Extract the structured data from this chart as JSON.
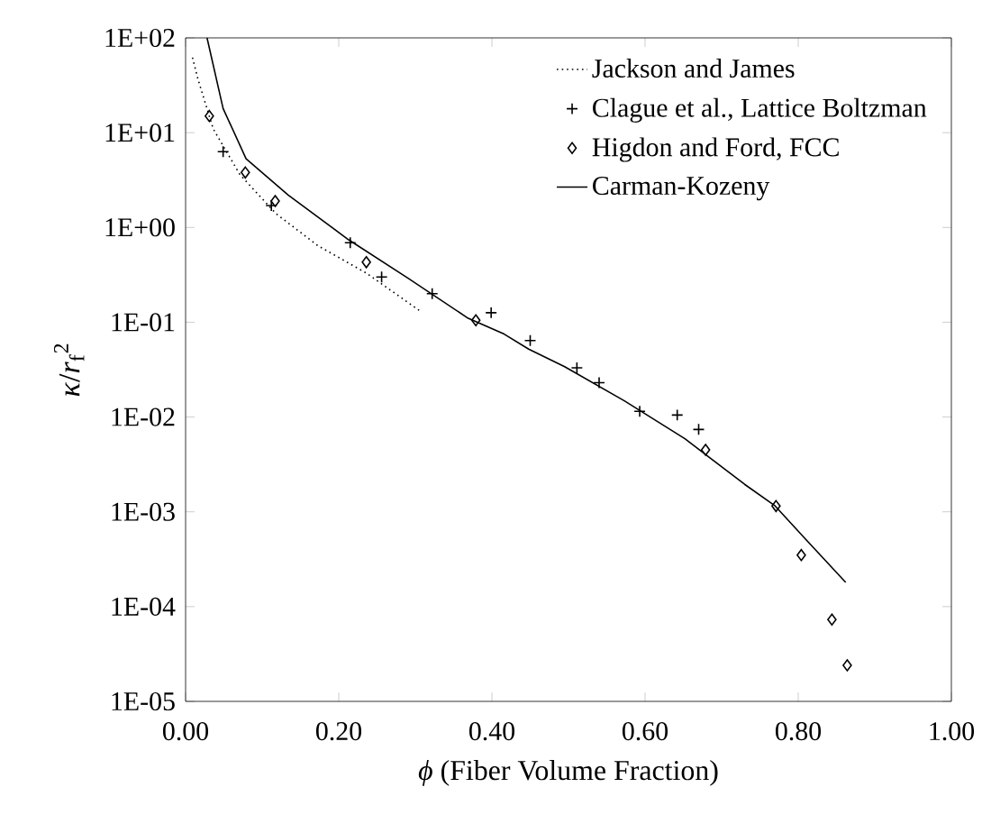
{
  "chart_data": {
    "type": "scatter",
    "xlabel": "*ϕ* (Fiber Volume Fraction)",
    "ylabel": "*κ*/*r*$_{f}$$^{2}$",
    "log": "y",
    "legend": "top right",
    "grid": false,
    "xlim": [
      0,
      1
    ],
    "xticks": [
      {
        "value": 0,
        "label": "0.00"
      },
      {
        "value": 0.2,
        "label": "0.20"
      },
      {
        "value": 0.4,
        "label": "0.40"
      },
      {
        "value": 0.6,
        "label": "0.60"
      },
      {
        "value": 0.8,
        "label": "0.80"
      },
      {
        "value": 1,
        "label": "1.00"
      }
    ],
    "ylim": [
      1e-05,
      100
    ],
    "yticks": [
      {
        "value": 1e-05,
        "label": "1E-05"
      },
      {
        "value": 0.0001,
        "label": "1E-04"
      },
      {
        "value": 0.001,
        "label": "1E-03"
      },
      {
        "value": 0.01,
        "label": "1E-02"
      },
      {
        "value": 0.1,
        "label": "1E-01"
      },
      {
        "value": 1,
        "label": "1E+00"
      },
      {
        "value": 10,
        "label": "1E+01"
      },
      {
        "value": 100,
        "label": "1E+02"
      }
    ],
    "series": [
      {
        "name": "Jackson and James",
        "type": "line",
        "line_style": "dotted",
        "marker": "none",
        "color": "#000000",
        "x": [
          0.009,
          0.016,
          0.036,
          0.071,
          0.118,
          0.173,
          0.236,
          0.307
        ],
        "values": [
          62,
          37,
          11,
          3.6,
          1.4,
          0.64,
          0.33,
          0.13
        ]
      },
      {
        "name": "Clague et al., Lattice Boltzman",
        "marker": "cross",
        "color": "#000000",
        "x": [
          0.049,
          0.112,
          0.215,
          0.256,
          0.322,
          0.399,
          0.45,
          0.511,
          0.54,
          0.593,
          0.642,
          0.67
        ],
        "values": [
          6.3,
          1.7,
          0.69,
          0.3,
          0.2,
          0.126,
          0.064,
          0.033,
          0.023,
          0.0115,
          0.0105,
          0.0074
        ]
      },
      {
        "name": "Higdon and Ford, FCC",
        "marker": "diamond",
        "color": "#000000",
        "x": [
          0.031,
          0.078,
          0.117,
          0.236,
          0.379,
          0.679,
          0.771,
          0.804,
          0.844,
          0.864
        ],
        "values": [
          15,
          3.8,
          1.9,
          0.43,
          0.105,
          0.0045,
          0.00115,
          0.00035,
          7.3e-05,
          2.4e-05
        ]
      },
      {
        "name": "Carman-Kozeny",
        "type": "line",
        "line_style": "solid",
        "marker": "none",
        "color": "#000000",
        "x": [
          0.028,
          0.049,
          0.079,
          0.134,
          0.213,
          0.291,
          0.369,
          0.416,
          0.448,
          0.495,
          0.573,
          0.652,
          0.73,
          0.769,
          0.809,
          0.862
        ],
        "values": [
          100,
          18,
          5.3,
          2.2,
          0.74,
          0.29,
          0.11,
          0.075,
          0.052,
          0.034,
          0.0148,
          0.0059,
          0.00195,
          0.00117,
          0.00052,
          0.00018
        ]
      }
    ]
  }
}
